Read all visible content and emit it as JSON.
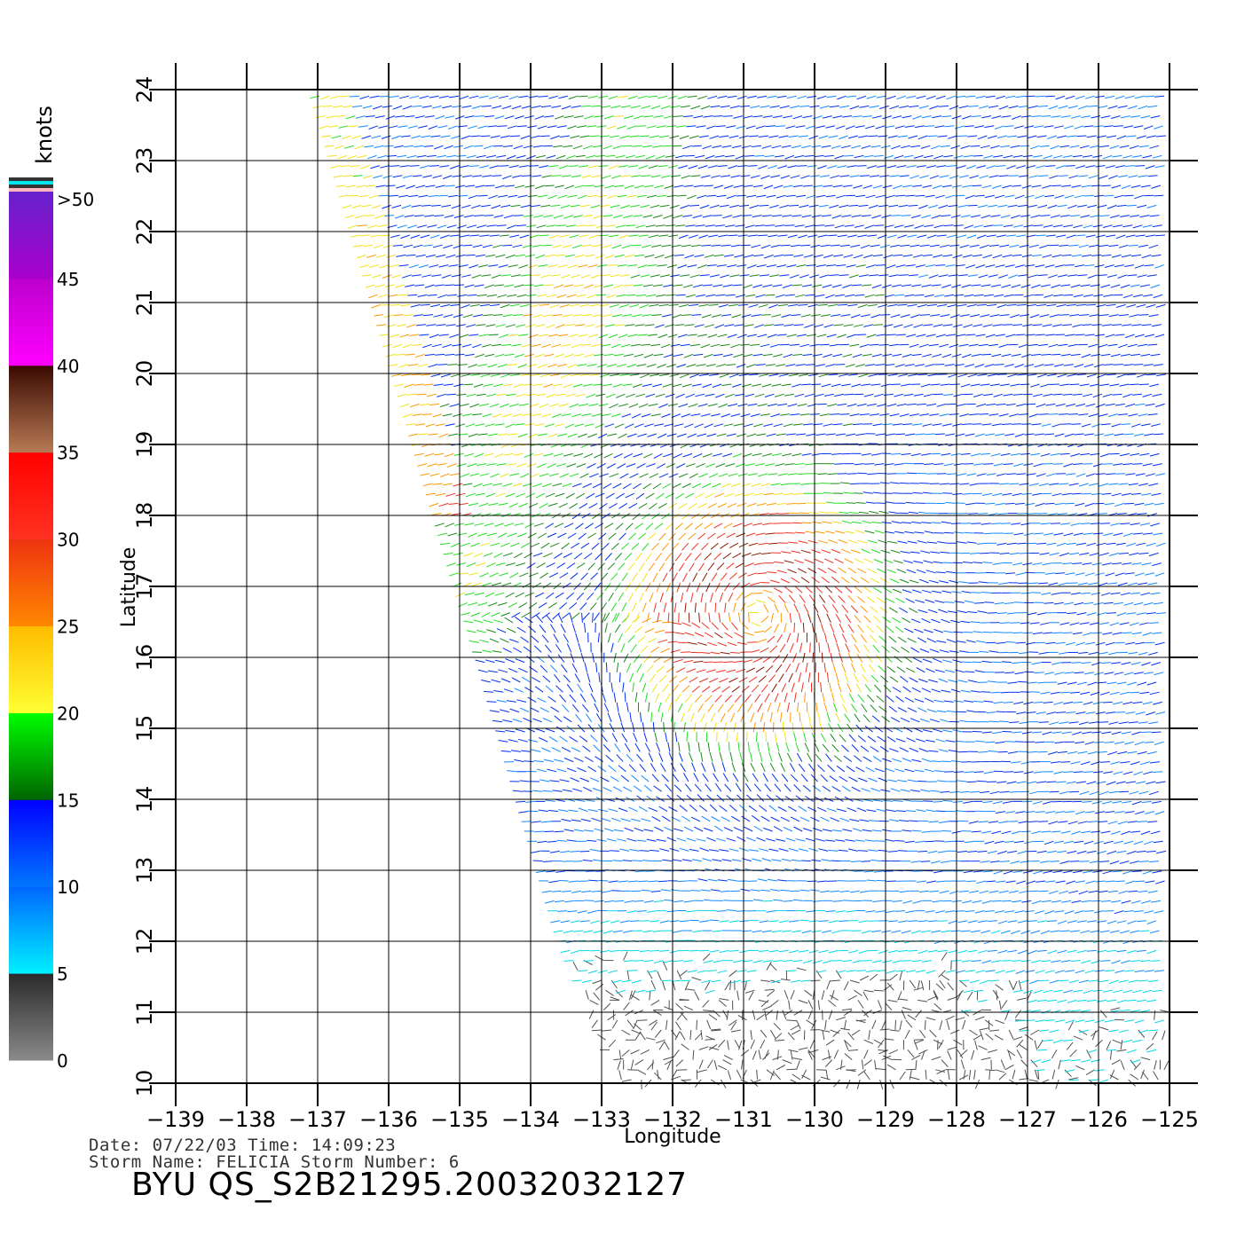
{
  "chart_data": {
    "type": "wind-vector-map",
    "xlabel": "Longitude",
    "ylabel": "Latitude",
    "xlim": [
      -139,
      -125
    ],
    "ylim": [
      10,
      24
    ],
    "x_ticks": [
      -139,
      -138,
      -137,
      -136,
      -135,
      -134,
      -133,
      -132,
      -131,
      -130,
      -129,
      -128,
      -127,
      -126,
      -125
    ],
    "y_ticks": [
      10,
      11,
      12,
      13,
      14,
      15,
      16,
      17,
      18,
      19,
      20,
      21,
      22,
      23,
      24
    ],
    "x_tick_labels": [
      "−139",
      "−138",
      "−137",
      "−136",
      "−135",
      "−134",
      "−133",
      "−132",
      "−131",
      "−130",
      "−129",
      "−128",
      "−127",
      "−126",
      "−125"
    ],
    "y_tick_labels": [
      "10",
      "11",
      "12",
      "13",
      "14",
      "15",
      "16",
      "17",
      "18",
      "19",
      "20",
      "21",
      "22",
      "23",
      "24"
    ],
    "grid": true,
    "swath": {
      "top_left_lon": -137.0,
      "top_lat": 24,
      "left_lon_at_bottom": -132.7,
      "bottom_lat": 10,
      "left_lon_at_lat_12": -133.5
    },
    "storm_center": {
      "lon": -130.8,
      "lat": 16.6
    },
    "legend": {
      "title": "knots",
      "bands": [
        {
          "label": "0",
          "value": 0,
          "color_from": "#8a8a8a",
          "color_to": "#2a2a2a"
        },
        {
          "label": "5",
          "value": 5,
          "color_from": "#00f0ff",
          "color_to": "#0066ff"
        },
        {
          "label": "10",
          "value": 10,
          "color_from": "#0077ff",
          "color_to": "#0000ff"
        },
        {
          "label": "15",
          "value": 15,
          "color_from": "#006400",
          "color_to": "#00ff00"
        },
        {
          "label": "20",
          "value": 20,
          "color_from": "#ffff33",
          "color_to": "#ffbb00"
        },
        {
          "label": "25",
          "value": 25,
          "color_from": "#ff8800",
          "color_to": "#ee3311"
        },
        {
          "label": "30",
          "value": 30,
          "color_from": "#ff3322",
          "color_to": "#ff0000"
        },
        {
          "label": "35",
          "value": 35,
          "color_from": "#b87a55",
          "color_to": "#3a0a00"
        },
        {
          "label": "40",
          "value": 40,
          "color_from": "#ff00ff",
          "color_to": "#bb00cc"
        },
        {
          "label": "45",
          "value": 45,
          "color_from": "#aa00cc",
          "color_to": "#6622cc"
        },
        {
          "label": ">50",
          "value": 50,
          "color_from": "#ffffff",
          "color_to": "#ffffff"
        }
      ],
      "extra_stripes": [
        "#ffb6c1",
        "#333333",
        "#00e5ee",
        "#333333"
      ]
    }
  },
  "footer": {
    "date_line": "Date:  07/22/03    Time:  14:09:23",
    "storm_line": "Storm  Name:  FELICIA    Storm  Number:  6",
    "title": "BYU  QS_S2B21295.20032032127"
  }
}
